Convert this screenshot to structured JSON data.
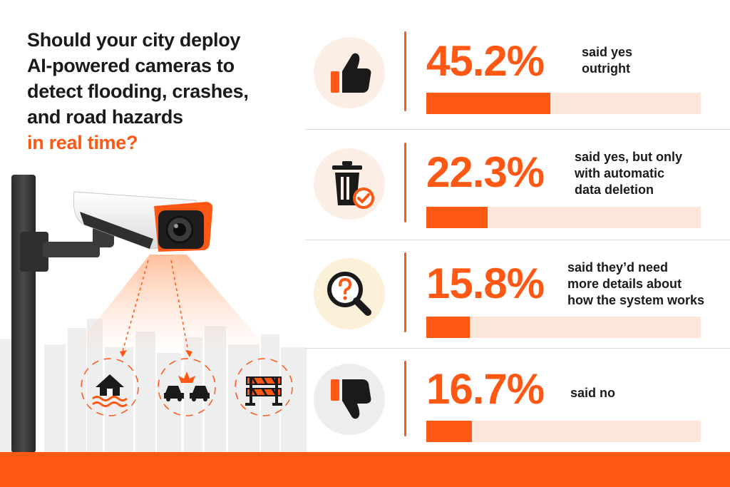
{
  "question": {
    "lines": [
      "Should your city deploy",
      "AI-powered cameras to",
      "detect flooding, crashes,",
      "and road hazards"
    ],
    "accent_line": "in real time?"
  },
  "illustration": {
    "hazard_icons": [
      "flood-house-icon",
      "car-crash-icon",
      "road-barrier-icon"
    ]
  },
  "colors": {
    "accent": "#ff5714",
    "bar_track": "#fde6da",
    "text": "#1a1a1a"
  },
  "chart_data": {
    "type": "bar",
    "orientation": "horizontal",
    "unit": "%",
    "ylim": [
      0,
      100
    ],
    "categories": [
      "said yes outright",
      "said yes, but only with automatic data deletion",
      "said they'd need more details about how the system works",
      "said no"
    ],
    "values": [
      45.2,
      22.3,
      15.8,
      16.7
    ],
    "value_labels": [
      "45.2%",
      "22.3%",
      "15.8%",
      "16.7%"
    ],
    "rows": [
      {
        "pct": "45.2%",
        "value": 45.2,
        "desc": [
          "said yes",
          "outright"
        ],
        "icon": "thumbs-up-icon",
        "icon_bg": "#fdeee5"
      },
      {
        "pct": "22.3%",
        "value": 22.3,
        "desc": [
          "said yes, but only",
          "with automatic",
          "data deletion"
        ],
        "icon": "trash-check-icon",
        "icon_bg": "#fdeee5"
      },
      {
        "pct": "15.8%",
        "value": 15.8,
        "desc": [
          "said they’d need",
          "more details about",
          "how the system works"
        ],
        "icon": "magnifier-question-icon",
        "icon_bg": "#fdf0d9"
      },
      {
        "pct": "16.7%",
        "value": 16.7,
        "desc": [
          "said no"
        ],
        "icon": "thumbs-down-icon",
        "icon_bg": "#ededed"
      }
    ]
  }
}
